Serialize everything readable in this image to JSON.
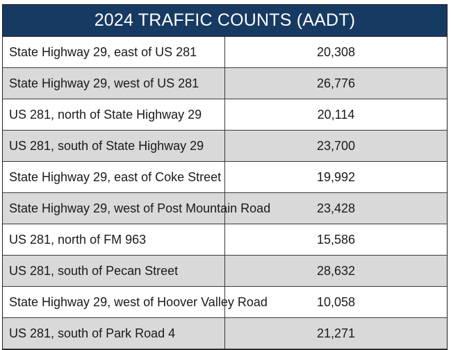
{
  "title": "2024 TRAFFIC COUNTS (AADT)",
  "rows": [
    {
      "location": "State Highway 29, east of US 281",
      "count": "20,308"
    },
    {
      "location": "State Highway 29, west of US 281",
      "count": "26,776"
    },
    {
      "location": "US 281, north of State Highway 29",
      "count": "20,114"
    },
    {
      "location": "US 281, south of State Highway 29",
      "count": "23,700"
    },
    {
      "location": "State Highway 29, east of Coke Street",
      "count": "19,992"
    },
    {
      "location": "State Highway 29, west of Post Mountain Road",
      "count": "23,428"
    },
    {
      "location": "US 281, north of FM 963",
      "count": "15,586"
    },
    {
      "location": "US 281, south of Pecan Street",
      "count": "28,632"
    },
    {
      "location": "State Highway 29, west of Hoover Valley Road",
      "count": "10,058"
    },
    {
      "location": "US 281, south of Park Road 4",
      "count": "21,271"
    }
  ],
  "colors": {
    "header_bg": "#173a63",
    "header_text": "#ffffff",
    "stripe": "#d9d9d9"
  }
}
